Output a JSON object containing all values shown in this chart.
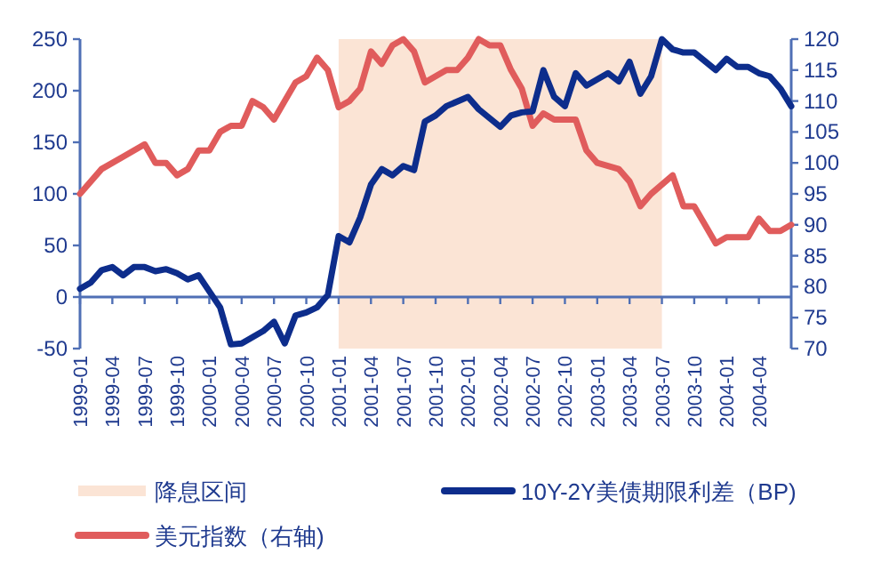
{
  "chart_data": {
    "type": "line",
    "legend": "bottom",
    "xlim": [
      "1999-01",
      "2004-07"
    ],
    "xticks": [
      "1999-01",
      "1999-04",
      "1999-07",
      "1999-10",
      "2000-01",
      "2000-04",
      "2000-07",
      "2000-10",
      "2001-01",
      "2001-04",
      "2001-07",
      "2001-10",
      "2002-01",
      "2002-04",
      "2002-07",
      "2002-10",
      "2003-01",
      "2003-04",
      "2003-07",
      "2003-10",
      "2004-01",
      "2004-04"
    ],
    "ylim": [
      -50,
      250
    ],
    "yticks": [
      -50,
      0,
      50,
      100,
      150,
      200,
      250
    ],
    "y2lim": [
      70,
      120
    ],
    "y2ticks": [
      70,
      75,
      80,
      85,
      90,
      95,
      100,
      105,
      110,
      115,
      120
    ],
    "ref_lines": [
      {
        "axis": "y",
        "value": 0,
        "color": "#4f6fb5"
      }
    ],
    "bands": [
      {
        "axis": "x",
        "from": "2001-01",
        "to": "2003-07",
        "label": "降息区间",
        "color": "#fbe4d5"
      }
    ],
    "series": [
      {
        "name": "10Y-2Y美债期限利差（BP)",
        "color": "#0d2d8c",
        "axis": "y",
        "x": [
          "1999-01",
          "1999-02",
          "1999-03",
          "1999-04",
          "1999-05",
          "1999-06",
          "1999-07",
          "1999-08",
          "1999-09",
          "1999-10",
          "1999-11",
          "1999-12",
          "2000-02",
          "2000-03",
          "2000-04",
          "2000-05",
          "2000-06",
          "2000-07",
          "2000-08",
          "2000-09",
          "2000-10",
          "2000-11",
          "2000-12",
          "2001-01",
          "2001-02",
          "2001-03",
          "2001-04",
          "2001-05",
          "2001-06",
          "2001-07",
          "2001-08",
          "2001-09",
          "2001-10",
          "2001-11",
          "2002-01",
          "2002-02",
          "2002-04",
          "2002-05",
          "2002-06",
          "2002-07",
          "2002-08",
          "2002-09",
          "2002-10",
          "2002-11",
          "2002-12",
          "2003-02",
          "2003-03",
          "2003-04",
          "2003-05",
          "2003-06",
          "2003-07",
          "2003-08",
          "2003-09",
          "2003-10",
          "2003-12",
          "2004-01",
          "2004-02",
          "2004-03",
          "2004-04",
          "2004-05",
          "2004-06",
          "2004-07"
        ],
        "values": [
          8,
          14,
          26,
          29,
          21,
          29,
          29,
          25,
          27,
          23,
          17,
          21,
          -10,
          -46,
          -45,
          -39,
          -33,
          -24,
          -45,
          -18,
          -15,
          -10,
          2,
          59,
          53,
          77,
          109,
          124,
          118,
          127,
          123,
          170,
          176,
          185,
          194,
          182,
          165,
          176,
          179,
          180,
          220,
          194,
          185,
          217,
          205,
          217,
          209,
          228,
          197,
          214,
          250,
          240,
          237,
          237,
          220,
          231,
          223,
          223,
          217,
          214,
          202,
          185
        ]
      },
      {
        "name": "美元指数（右轴)",
        "color": "#e05c5c",
        "axis": "y2",
        "x": [
          "1999-01",
          "1999-03",
          "1999-05",
          "1999-06",
          "1999-07",
          "1999-08",
          "1999-09",
          "1999-10",
          "1999-11",
          "1999-12",
          "2000-01",
          "2000-02",
          "2000-03",
          "2000-04",
          "2000-05",
          "2000-06",
          "2000-07",
          "2000-08",
          "2000-09",
          "2000-10",
          "2000-11",
          "2000-12",
          "2001-01",
          "2001-02",
          "2001-03",
          "2001-04",
          "2001-05",
          "2001-06",
          "2001-07",
          "2001-08",
          "2001-09",
          "2001-10",
          "2001-11",
          "2001-12",
          "2002-01",
          "2002-02",
          "2002-03",
          "2002-04",
          "2002-05",
          "2002-06",
          "2002-07",
          "2002-08",
          "2002-09",
          "2002-10",
          "2002-11",
          "2002-12",
          "2003-01",
          "2003-03",
          "2003-04",
          "2003-05",
          "2003-06",
          "2003-08",
          "2003-09",
          "2003-10",
          "2003-12",
          "2004-01",
          "2004-03",
          "2004-04",
          "2004-05",
          "2004-06",
          "2004-07"
        ],
        "values": [
          95,
          99,
          101,
          102,
          103,
          100,
          100,
          98,
          99,
          102,
          102,
          105,
          106,
          106,
          110,
          109,
          107,
          110,
          113,
          114,
          117,
          115,
          109,
          110,
          112,
          118,
          116,
          119,
          120,
          118,
          113,
          114,
          115,
          115,
          117,
          120,
          119,
          119,
          115,
          112,
          106,
          108,
          107,
          107,
          107,
          102,
          100,
          99,
          97,
          93,
          95,
          98,
          93,
          93,
          87,
          88,
          88,
          91,
          89,
          89,
          90
        ]
      }
    ]
  }
}
